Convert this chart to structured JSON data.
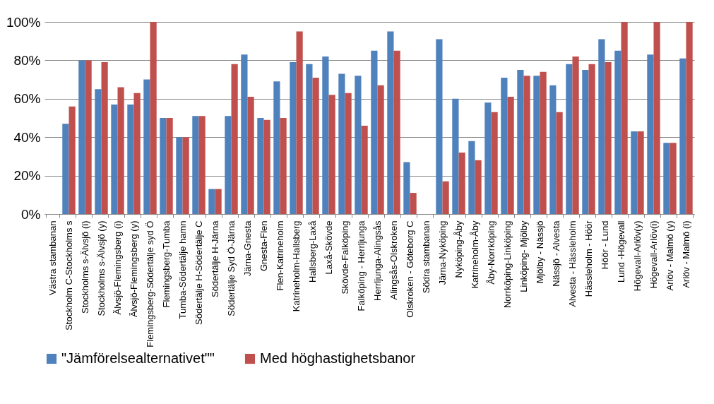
{
  "chart_data": {
    "type": "bar",
    "categories": [
      "Västra stambanan",
      "Stockholm C-Stockholms s",
      "Stockholms s-Älvsjö (i)",
      "Stockholms s-Älvsjö (y)",
      "Älvsjö-Flemingsberg (i)",
      "Älvsjö-Flemingsberg (y)",
      "Flemingsberg-Södertälje syd Ö",
      "Flemingsberg-Tumba",
      "Tumba-Södertälje hamn",
      "Södertälje H-Södertälje C",
      "Södertälje H-Järna",
      "Södertälje Syd Ö-Järna",
      "Järna-Gnesta",
      "Gnesta-Flen",
      "Flen-Katrineholm",
      "Katrineholm-Hallsberg",
      "Hallsberg-Laxå",
      "Laxå-Skövde",
      "Skövde-Falköping",
      "Falköping - Herrljunga",
      "Herrljunga-Alingsås",
      "Alingsås-Olskroken",
      "Olskroken - Göteborg C",
      "Södra stambanan",
      "Järna-Nyköping",
      "Nyköping-Åby",
      "Katrineholm-Åby",
      "Åby-Norrköping",
      "Norrköping-Linköping",
      "Linköping- Mjölby",
      "Mjölby - Nässjö",
      "Nässjö - Alvesta",
      "Alvesta - Hässleholm",
      "Hässleholm - Höör",
      "Höör - Lund",
      "Lund -Högevall",
      "Högevall-Arlöv(y)",
      "Högevall-Arlöv(i)",
      "Arlöv - Malmö (y)",
      "Arlöv - Malmö (i)"
    ],
    "series": [
      {
        "name": "\"Jämförelsealternativet\"\"",
        "color": "#4f81bd",
        "values": [
          null,
          47,
          80,
          65,
          57,
          57,
          70,
          50,
          40,
          51,
          13,
          51,
          83,
          50,
          69,
          79,
          78,
          82,
          73,
          72,
          85,
          95,
          27,
          null,
          91,
          60,
          38,
          58,
          71,
          75,
          72,
          67,
          78,
          75,
          91,
          85,
          43,
          83,
          37,
          81
        ]
      },
      {
        "name": "Med höghastighetsbanor",
        "color": "#c0504d",
        "values": [
          null,
          56,
          80,
          79,
          66,
          63,
          100,
          50,
          40,
          51,
          13,
          78,
          61,
          49,
          50,
          95,
          71,
          62,
          63,
          46,
          67,
          85,
          11,
          null,
          17,
          32,
          28,
          53,
          61,
          72,
          74,
          53,
          82,
          78,
          79,
          100,
          43,
          100,
          37,
          100
        ]
      }
    ],
    "ylim": [
      0,
      100
    ],
    "yticks": [
      {
        "value": 0,
        "label": "0%"
      },
      {
        "value": 20,
        "label": "20%"
      },
      {
        "value": 40,
        "label": "40%"
      },
      {
        "value": 60,
        "label": "60%"
      },
      {
        "value": 80,
        "label": "80%"
      },
      {
        "value": 100,
        "label": "100%"
      }
    ],
    "grid": "y",
    "legend": "bottom"
  }
}
